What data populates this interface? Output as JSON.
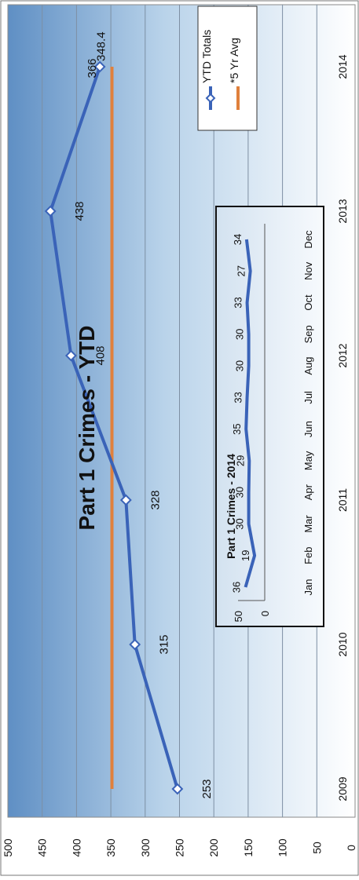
{
  "chart_data": [
    {
      "type": "line",
      "title": "Part 1 Crimes - YTD",
      "orientation": "rotated 90° clockwise",
      "x": [
        "2009",
        "2010",
        "2011",
        "2012",
        "2013",
        "2014"
      ],
      "series": [
        {
          "name": "YTD Totals",
          "color": "#3a63b8",
          "marker": "diamond",
          "values": [
            253,
            315,
            328,
            408,
            438,
            366
          ],
          "labels": [
            "253",
            "315",
            "328",
            "408",
            "438",
            "366"
          ]
        },
        {
          "name": "*5 Yr Avg",
          "color": "#e0803c",
          "x_range": [
            "2009",
            "2014"
          ],
          "value": 348.4,
          "label": "348.4"
        }
      ],
      "yticks": [
        "0",
        "50",
        "100",
        "150",
        "200",
        "250",
        "300",
        "350",
        "400",
        "450",
        "500"
      ],
      "ylim": [
        0,
        500
      ],
      "grid": true,
      "legend": "top-right"
    },
    {
      "type": "line",
      "title": "Part 1 Crimes - 2014",
      "orientation": "rotated 90° clockwise",
      "x": [
        "Jan",
        "Feb",
        "Mar",
        "Apr",
        "May",
        "Jun",
        "Jul",
        "Aug",
        "Sep",
        "Oct",
        "Nov",
        "Dec"
      ],
      "values": [
        36,
        19,
        30,
        30,
        29,
        35,
        33,
        30,
        30,
        33,
        27,
        34
      ],
      "labels": [
        "36",
        "19",
        "30",
        "30",
        "29",
        "35",
        "33",
        "30",
        "30",
        "33",
        "27",
        "34"
      ],
      "yticks": [
        "0",
        "50"
      ],
      "ylim": [
        0,
        50
      ],
      "color": "#3a63b8"
    }
  ]
}
